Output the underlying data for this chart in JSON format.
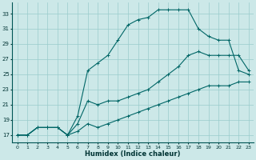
{
  "xlabel": "Humidex (Indice chaleur)",
  "bg_color": "#cce8e8",
  "grid_color": "#99cccc",
  "line_color": "#006666",
  "xlim": [
    -0.5,
    23.5
  ],
  "ylim": [
    16.0,
    34.5
  ],
  "xticks": [
    0,
    1,
    2,
    3,
    4,
    5,
    6,
    7,
    8,
    9,
    10,
    11,
    12,
    13,
    14,
    15,
    16,
    17,
    18,
    19,
    20,
    21,
    22,
    23
  ],
  "yticks": [
    17,
    19,
    21,
    23,
    25,
    27,
    29,
    31,
    33
  ],
  "lines": [
    {
      "x": [
        0,
        1,
        2,
        3,
        4,
        5,
        6,
        7,
        8,
        9,
        10,
        11,
        12,
        13,
        14,
        15,
        16,
        17,
        18,
        19,
        20,
        21,
        22,
        23
      ],
      "y": [
        17,
        17,
        18,
        18,
        18,
        17,
        19.5,
        25.5,
        26.5,
        27.5,
        29.5,
        31.5,
        32.2,
        32.5,
        33.5,
        33.5,
        33.5,
        33.5,
        31.0,
        30.0,
        29.5,
        29.5,
        25.5,
        25.0
      ]
    },
    {
      "x": [
        0,
        1,
        2,
        3,
        4,
        5,
        6,
        7,
        8,
        9,
        10,
        11,
        12,
        13,
        14,
        15,
        16,
        17,
        18,
        19,
        20,
        21,
        22,
        23
      ],
      "y": [
        17,
        17,
        18,
        18,
        18,
        17,
        18.5,
        21.5,
        21.0,
        21.5,
        21.5,
        22.0,
        22.5,
        23.0,
        24.0,
        25.0,
        26.0,
        27.5,
        28.0,
        27.5,
        27.5,
        27.5,
        27.5,
        25.5
      ]
    },
    {
      "x": [
        0,
        1,
        2,
        3,
        4,
        5,
        6,
        7,
        8,
        9,
        10,
        11,
        12,
        13,
        14,
        15,
        16,
        17,
        18,
        19,
        20,
        21,
        22,
        23
      ],
      "y": [
        17,
        17,
        18,
        18,
        18,
        17,
        17.5,
        18.5,
        18.0,
        18.5,
        19.0,
        19.5,
        20.0,
        20.5,
        21.0,
        21.5,
        22.0,
        22.5,
        23.0,
        23.5,
        23.5,
        23.5,
        24.0,
        24.0
      ]
    }
  ]
}
